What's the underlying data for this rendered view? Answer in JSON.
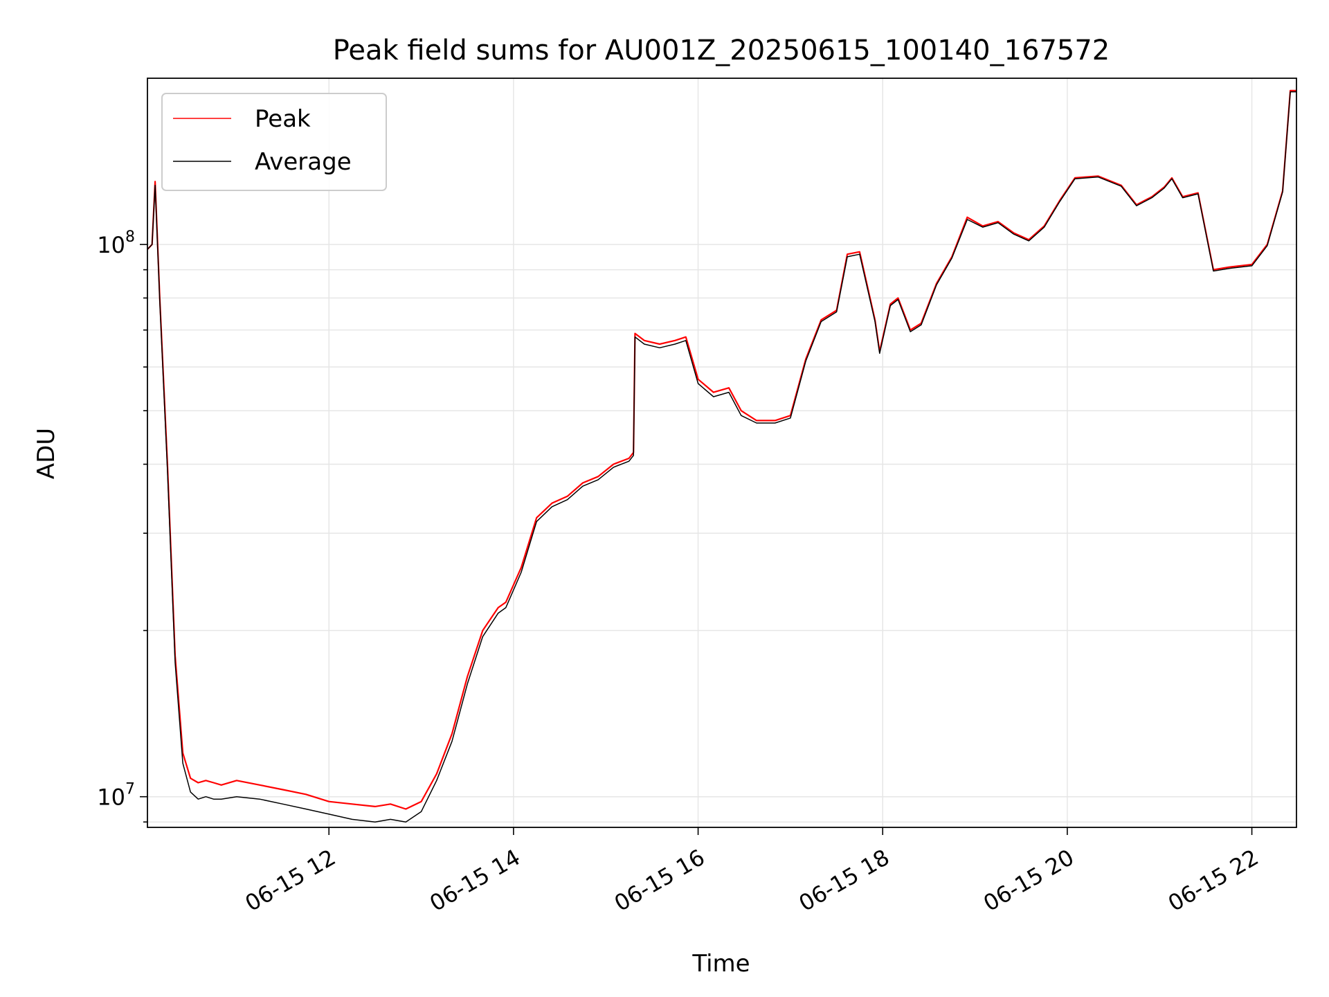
{
  "chart_data": {
    "type": "line",
    "title": "Peak field sums for AU001Z_20250615_100140_167572",
    "xlabel": "Time",
    "ylabel": "ADU",
    "y_scale": "log",
    "xlim": [
      "2025-06-15 10:02",
      "2025-06-15 22:29"
    ],
    "ylim": [
      8800000,
      200000000
    ],
    "grid": true,
    "legend_position": "top-left",
    "x_ticks": [
      {
        "value": "2025-06-15 12:00",
        "label": "06-15 12"
      },
      {
        "value": "2025-06-15 14:00",
        "label": "06-15 14"
      },
      {
        "value": "2025-06-15 16:00",
        "label": "06-15 16"
      },
      {
        "value": "2025-06-15 18:00",
        "label": "06-15 18"
      },
      {
        "value": "2025-06-15 20:00",
        "label": "06-15 20"
      },
      {
        "value": "2025-06-15 22:00",
        "label": "06-15 22"
      }
    ],
    "y_major_ticks": [
      {
        "value": 10000000,
        "base": "10",
        "exp": "7"
      },
      {
        "value": 100000000,
        "base": "10",
        "exp": "8"
      }
    ],
    "x": [
      "2025-06-15 10:02",
      "2025-06-15 10:05",
      "2025-06-15 10:07",
      "2025-06-15 10:10",
      "2025-06-15 10:15",
      "2025-06-15 10:20",
      "2025-06-15 10:25",
      "2025-06-15 10:30",
      "2025-06-15 10:35",
      "2025-06-15 10:40",
      "2025-06-15 10:45",
      "2025-06-15 10:50",
      "2025-06-15 11:00",
      "2025-06-15 11:15",
      "2025-06-15 11:30",
      "2025-06-15 11:45",
      "2025-06-15 12:00",
      "2025-06-15 12:15",
      "2025-06-15 12:30",
      "2025-06-15 12:40",
      "2025-06-15 12:50",
      "2025-06-15 13:00",
      "2025-06-15 13:10",
      "2025-06-15 13:20",
      "2025-06-15 13:30",
      "2025-06-15 13:40",
      "2025-06-15 13:50",
      "2025-06-15 13:55",
      "2025-06-15 14:05",
      "2025-06-15 14:15",
      "2025-06-15 14:25",
      "2025-06-15 14:35",
      "2025-06-15 14:45",
      "2025-06-15 14:55",
      "2025-06-15 15:05",
      "2025-06-15 15:15",
      "2025-06-15 15:18",
      "2025-06-15 15:19",
      "2025-06-15 15:25",
      "2025-06-15 15:35",
      "2025-06-15 15:45",
      "2025-06-15 15:52",
      "2025-06-15 16:00",
      "2025-06-15 16:10",
      "2025-06-15 16:20",
      "2025-06-15 16:28",
      "2025-06-15 16:38",
      "2025-06-15 16:50",
      "2025-06-15 17:00",
      "2025-06-15 17:10",
      "2025-06-15 17:20",
      "2025-06-15 17:30",
      "2025-06-15 17:37",
      "2025-06-15 17:45",
      "2025-06-15 17:55",
      "2025-06-15 17:58",
      "2025-06-15 18:05",
      "2025-06-15 18:10",
      "2025-06-15 18:18",
      "2025-06-15 18:25",
      "2025-06-15 18:35",
      "2025-06-15 18:45",
      "2025-06-15 18:55",
      "2025-06-15 19:05",
      "2025-06-15 19:15",
      "2025-06-15 19:25",
      "2025-06-15 19:35",
      "2025-06-15 19:45",
      "2025-06-15 19:55",
      "2025-06-15 20:05",
      "2025-06-15 20:20",
      "2025-06-15 20:35",
      "2025-06-15 20:45",
      "2025-06-15 20:55",
      "2025-06-15 21:03",
      "2025-06-15 21:08",
      "2025-06-15 21:15",
      "2025-06-15 21:25",
      "2025-06-15 21:35",
      "2025-06-15 21:45",
      "2025-06-15 22:00",
      "2025-06-15 22:10",
      "2025-06-15 22:20",
      "2025-06-15 22:25",
      "2025-06-15 22:29"
    ],
    "series": [
      {
        "name": "Peak",
        "color": "#ff0000",
        "values": [
          98000000,
          100000000,
          130000000,
          80000000,
          40000000,
          18000000,
          12000000,
          10800000,
          10600000,
          10700000,
          10600000,
          10500000,
          10700000,
          10500000,
          10300000,
          10100000,
          9800000,
          9700000,
          9600000,
          9700000,
          9500000,
          9800000,
          11000000,
          13000000,
          16500000,
          20000000,
          22000000,
          22500000,
          26000000,
          32000000,
          34000000,
          35000000,
          37000000,
          38000000,
          40000000,
          41000000,
          42000000,
          69000000,
          67000000,
          66000000,
          67000000,
          68000000,
          57000000,
          54000000,
          55000000,
          50000000,
          48000000,
          48000000,
          49000000,
          62000000,
          73000000,
          76000000,
          96000000,
          97000000,
          73000000,
          64000000,
          78000000,
          80000000,
          70000000,
          72000000,
          85000000,
          95000000,
          112000000,
          108000000,
          110000000,
          105000000,
          102000000,
          108000000,
          120000000,
          132000000,
          133000000,
          128000000,
          118000000,
          122000000,
          127000000,
          132000000,
          122000000,
          124000000,
          90000000,
          91000000,
          92000000,
          100000000,
          125000000,
          190000000,
          190000000
        ]
      },
      {
        "name": "Average",
        "color": "#000000",
        "values": [
          98000000,
          100000000,
          128000000,
          79000000,
          39000000,
          17500000,
          11500000,
          10200000,
          9900000,
          10000000,
          9900000,
          9900000,
          10000000,
          9900000,
          9700000,
          9500000,
          9300000,
          9100000,
          9000000,
          9100000,
          9000000,
          9400000,
          10700000,
          12600000,
          16000000,
          19500000,
          21500000,
          22000000,
          25500000,
          31500000,
          33500000,
          34500000,
          36500000,
          37500000,
          39500000,
          40500000,
          41500000,
          68000000,
          66000000,
          65000000,
          66000000,
          67000000,
          56000000,
          53000000,
          54000000,
          49000000,
          47500000,
          47500000,
          48500000,
          61500000,
          72500000,
          75500000,
          95000000,
          96000000,
          72500000,
          63500000,
          77500000,
          79500000,
          69500000,
          71500000,
          84500000,
          94500000,
          111000000,
          107500000,
          109500000,
          104500000,
          101500000,
          107500000,
          119500000,
          131500000,
          132500000,
          127500000,
          117500000,
          121500000,
          126500000,
          131500000,
          121500000,
          123500000,
          89500000,
          90500000,
          91500000,
          99500000,
          124500000,
          189000000,
          189000000
        ]
      }
    ]
  }
}
